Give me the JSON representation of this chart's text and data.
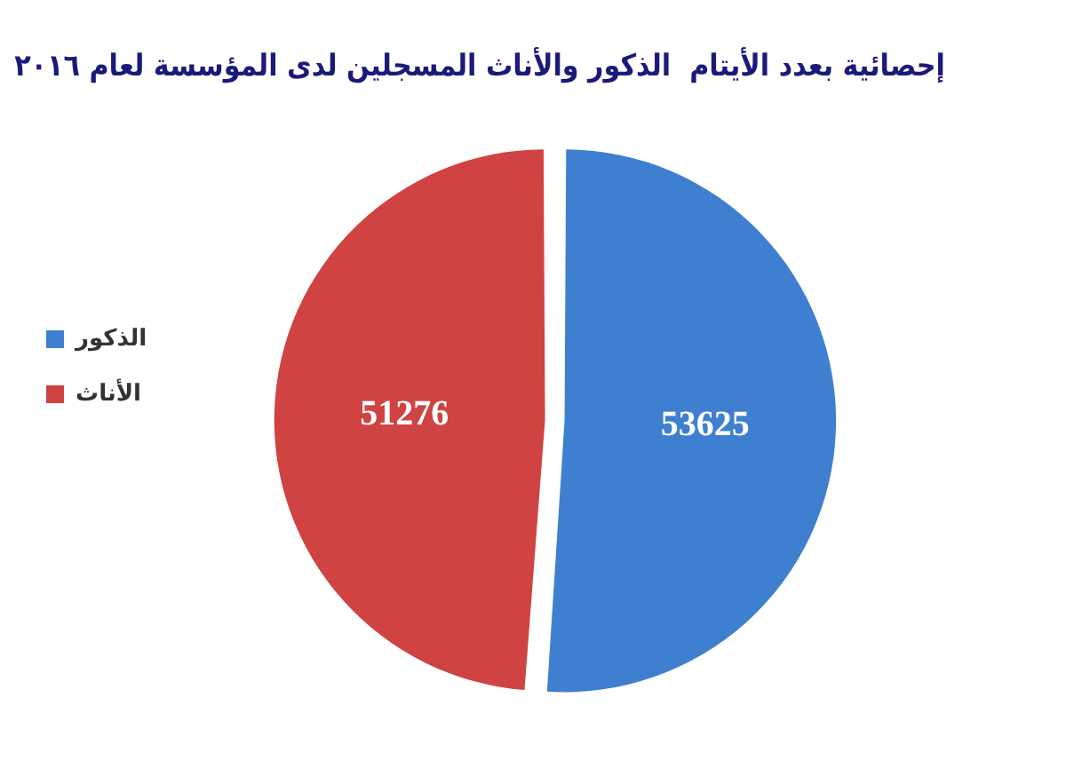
{
  "chart_data": {
    "type": "pie",
    "title": "إحصائية بعدد الأيتام  الذكور والأناث المسجلين لدى المؤسسة لعام ٢٠١٦",
    "categories": [
      "الذكور",
      "الأناث"
    ],
    "values": [
      53625,
      51276
    ],
    "colors": [
      "#3f7fcf",
      "#d04343"
    ],
    "data_labels": true,
    "legend": "left"
  }
}
